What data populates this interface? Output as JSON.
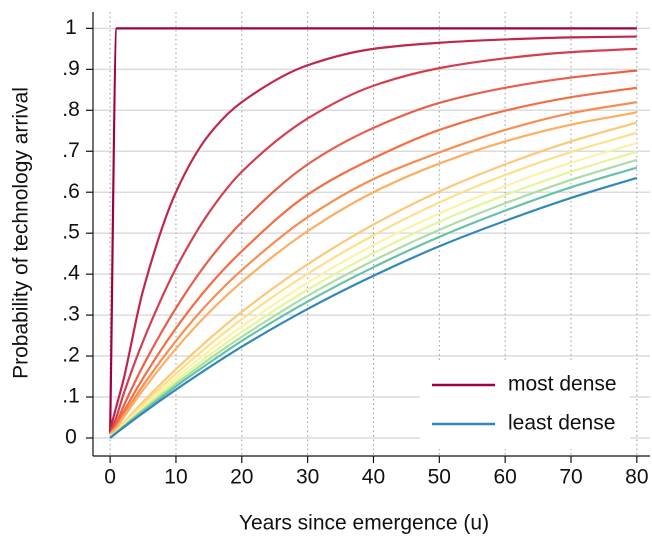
{
  "chart_data": {
    "type": "line",
    "x_label": "Years since emergence (u)",
    "y_label": "Probability of technology arrival",
    "x": [
      0,
      1,
      2,
      5,
      10,
      15,
      20,
      30,
      40,
      50,
      60,
      70,
      80
    ],
    "series": [
      {
        "name": "most dense",
        "color": "#9e0142",
        "values": [
          0.01,
          1,
          1,
          1,
          1,
          1,
          1,
          1,
          1,
          1,
          1,
          1,
          1
        ]
      },
      {
        "color": "#c0264a",
        "values": [
          0.02,
          0.08,
          0.14,
          0.36,
          0.6,
          0.74,
          0.82,
          0.91,
          0.95,
          0.965,
          0.973,
          0.978,
          0.98
        ]
      },
      {
        "color": "#d53e4f",
        "values": [
          0.01,
          0.053,
          0.105,
          0.236,
          0.414,
          0.55,
          0.65,
          0.78,
          0.86,
          0.903,
          0.927,
          0.942,
          0.95
        ]
      },
      {
        "color": "#e8604b",
        "values": [
          0.01,
          0.038,
          0.076,
          0.176,
          0.317,
          0.434,
          0.527,
          0.668,
          0.757,
          0.818,
          0.855,
          0.88,
          0.897
        ]
      },
      {
        "color": "#f46d43",
        "values": [
          0.01,
          0.031,
          0.062,
          0.146,
          0.268,
          0.371,
          0.456,
          0.594,
          0.683,
          0.752,
          0.799,
          0.832,
          0.855
        ]
      },
      {
        "color": "#f88d52",
        "values": [
          0.01,
          0.027,
          0.054,
          0.128,
          0.237,
          0.331,
          0.41,
          0.539,
          0.632,
          0.697,
          0.752,
          0.793,
          0.82
        ]
      },
      {
        "color": "#fdae61",
        "values": [
          0.01,
          0.025,
          0.049,
          0.117,
          0.218,
          0.306,
          0.381,
          0.505,
          0.6,
          0.67,
          0.724,
          0.765,
          0.795
        ]
      },
      {
        "color": "#fdc877",
        "values": [
          0,
          0.018,
          0.036,
          0.088,
          0.168,
          0.241,
          0.308,
          0.424,
          0.521,
          0.602,
          0.668,
          0.724,
          0.77
        ]
      },
      {
        "color": "#fee08b",
        "values": [
          0,
          0.017,
          0.034,
          0.082,
          0.157,
          0.226,
          0.29,
          0.401,
          0.495,
          0.575,
          0.642,
          0.698,
          0.745
        ]
      },
      {
        "color": "#fff1a8",
        "values": [
          0,
          0.016,
          0.031,
          0.076,
          0.147,
          0.212,
          0.272,
          0.379,
          0.471,
          0.548,
          0.615,
          0.672,
          0.72
        ]
      },
      {
        "color": "#e6f598",
        "values": [
          0,
          0.015,
          0.03,
          0.072,
          0.139,
          0.201,
          0.259,
          0.362,
          0.451,
          0.528,
          0.593,
          0.65,
          0.699
        ]
      },
      {
        "color": "#abdda4",
        "values": [
          0,
          0.014,
          0.028,
          0.069,
          0.132,
          0.192,
          0.247,
          0.347,
          0.433,
          0.508,
          0.573,
          0.63,
          0.679
        ]
      },
      {
        "color": "#66c2a5",
        "values": [
          0,
          0.013,
          0.027,
          0.065,
          0.126,
          0.183,
          0.237,
          0.333,
          0.417,
          0.491,
          0.555,
          0.612,
          0.66
        ]
      },
      {
        "name": "least dense",
        "color": "#3288bd",
        "values": [
          0,
          0.013,
          0.025,
          0.061,
          0.118,
          0.172,
          0.223,
          0.315,
          0.396,
          0.468,
          0.53,
          0.586,
          0.635
        ]
      }
    ],
    "xlim": [
      -2.6,
      82
    ],
    "ylim": [
      -0.044,
      1.04
    ],
    "xticks": [
      0,
      10,
      20,
      30,
      40,
      50,
      60,
      70,
      80
    ],
    "yticks": [
      0,
      {
        "value": 0.1,
        "label": ".1"
      },
      {
        "value": 0.2,
        "label": ".2"
      },
      {
        "value": 0.3,
        "label": ".3"
      },
      {
        "value": 0.4,
        "label": ".4"
      },
      {
        "value": 0.5,
        "label": ".5"
      },
      {
        "value": 0.6,
        "label": ".6"
      },
      {
        "value": 0.7,
        "label": ".7"
      },
      {
        "value": 0.8,
        "label": ".8"
      },
      {
        "value": 0.9,
        "label": ".9"
      },
      1
    ],
    "grid": true,
    "legend": "lower right"
  }
}
